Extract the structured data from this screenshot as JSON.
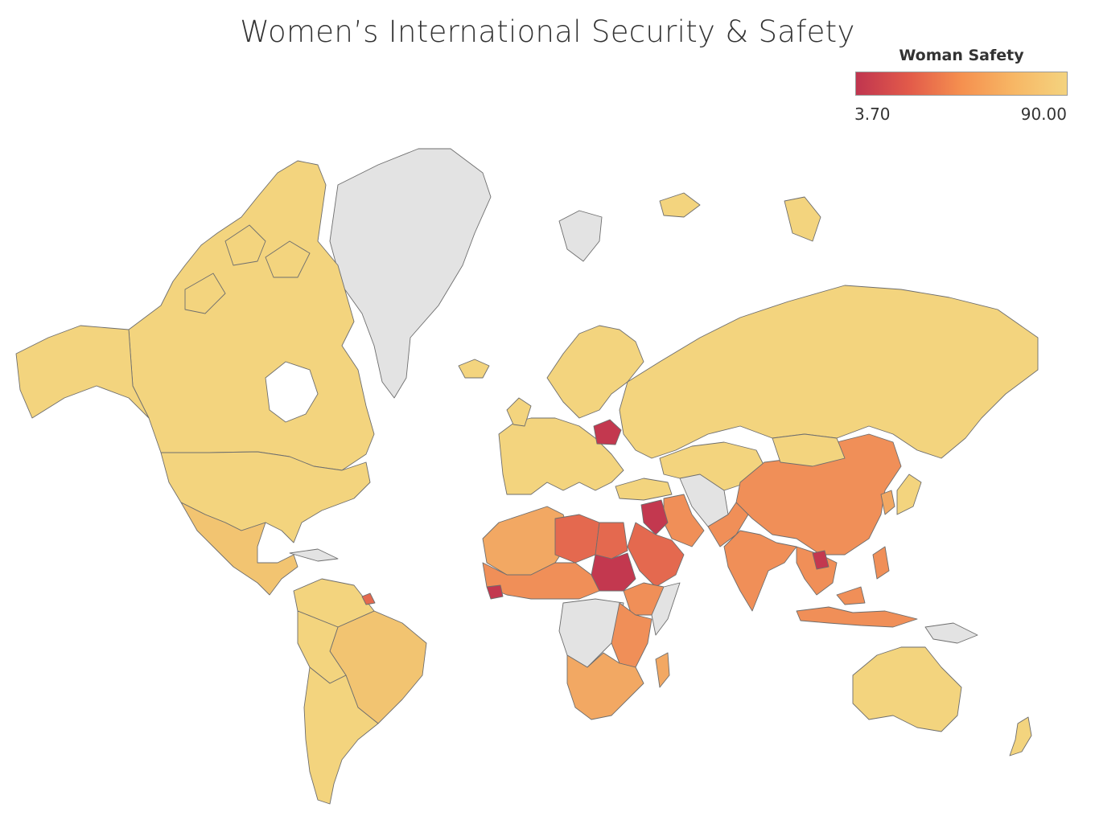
{
  "title": "Women’s International Security & Safety",
  "legend": {
    "title": "Woman Safety",
    "min_label": "3.70",
    "max_label": "90.00",
    "gradient": [
      "#c0354f",
      "#e25a4a",
      "#f5904f",
      "#f7b765",
      "#f4d37f"
    ]
  },
  "colors": {
    "no_data": "#e3e3e3",
    "border": "#6e6e6e",
    "safety_high": "#f3d47e",
    "safety_mid_high": "#f2c471",
    "safety_mid": "#f2a863",
    "safety_mid_low": "#f08f58",
    "safety_low": "#e4694f",
    "safety_lowest": "#c3384f"
  }
}
